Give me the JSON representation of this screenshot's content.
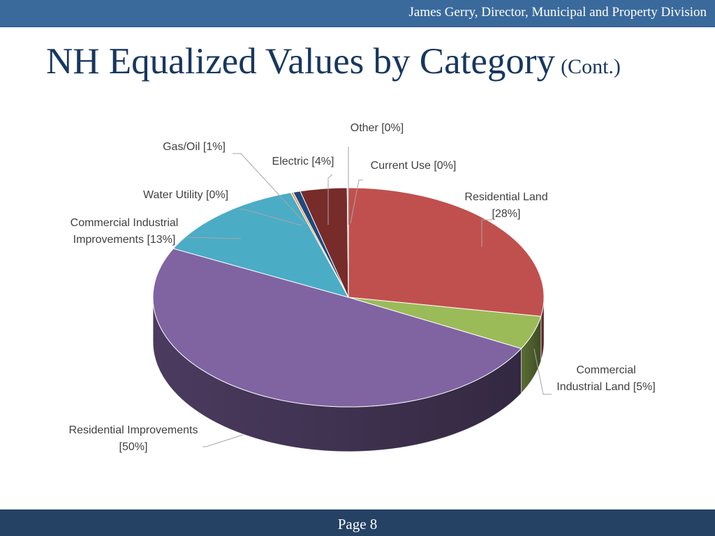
{
  "header": {
    "presenter": "James Gerry, Director, Municipal and Property Division"
  },
  "title": {
    "main": "NH Equalized Values by Category",
    "suffix": "(Cont.)"
  },
  "chart_data": {
    "type": "pie",
    "three_d": true,
    "slices": [
      {
        "name": "Residential Land",
        "label_lines": [
          "Residential Land",
          "[28%]"
        ],
        "value": 28,
        "color": "#c0504d"
      },
      {
        "name": "Commercial Industrial Land",
        "label_lines": [
          "Commercial",
          "Industrial Land [5%]"
        ],
        "value": 5,
        "color": "#9bbb59"
      },
      {
        "name": "Residential Improvements",
        "label_lines": [
          "Residential Improvements",
          "[50%]"
        ],
        "value": 50,
        "color": "#8064a2"
      },
      {
        "name": "Commercial Industrial Improvements",
        "label_lines": [
          "Commercial Industrial",
          "Improvements [13%]"
        ],
        "value": 13,
        "color": "#4bacc6"
      },
      {
        "name": "Water Utility",
        "label_lines": [
          "Water Utility [0%]"
        ],
        "value": 0.2,
        "color": "#f79646"
      },
      {
        "name": "Gas/Oil",
        "label_lines": [
          "Gas/Oil [1%]"
        ],
        "value": 0.6,
        "color": "#1f497d"
      },
      {
        "name": "Electric",
        "label_lines": [
          "Electric [4%]"
        ],
        "value": 3.9,
        "color": "#772c2a"
      },
      {
        "name": "Other",
        "label_lines": [
          "Other [0%]"
        ],
        "value": 0.05,
        "color": "#5c4776"
      },
      {
        "name": "Current Use",
        "label_lines": [
          "Current Use [0%]"
        ],
        "value": 0.05,
        "color": "#4f6228"
      }
    ]
  },
  "footer": {
    "page": "Page 8"
  }
}
